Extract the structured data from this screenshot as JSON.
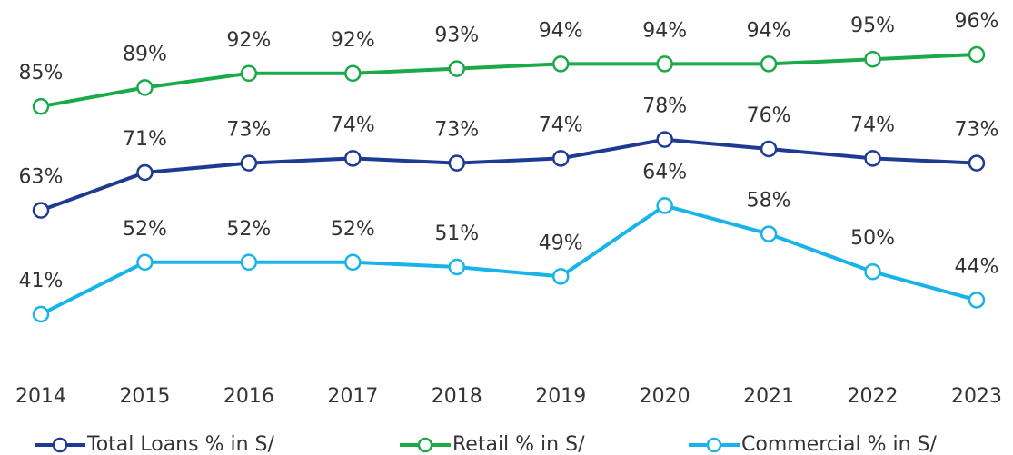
{
  "chart_data": {
    "type": "line",
    "categories": [
      "2014",
      "2015",
      "2016",
      "2017",
      "2018",
      "2019",
      "2020",
      "2021",
      "2022",
      "2023"
    ],
    "series": [
      {
        "name": "Total Loans % in S/",
        "color": "#1f3a93",
        "values": [
          63,
          71,
          73,
          74,
          73,
          74,
          78,
          76,
          74,
          73
        ],
        "value_labels": [
          "63%",
          "71%",
          "73%",
          "74%",
          "73%",
          "74%",
          "78%",
          "76%",
          "74%",
          "73%"
        ]
      },
      {
        "name": "Retail % in S/",
        "color": "#1aaa4a",
        "values": [
          85,
          89,
          92,
          92,
          93,
          94,
          94,
          94,
          95,
          96
        ],
        "value_labels": [
          "85%",
          "89%",
          "92%",
          "92%",
          "93%",
          "94%",
          "94%",
          "94%",
          "95%",
          "96%"
        ]
      },
      {
        "name": "Commercial % in S/",
        "color": "#18b4e9",
        "values": [
          41,
          52,
          52,
          52,
          51,
          49,
          64,
          58,
          50,
          44
        ],
        "value_labels": [
          "41%",
          "52%",
          "52%",
          "52%",
          "51%",
          "49%",
          "64%",
          "58%",
          "50%",
          "44%"
        ]
      }
    ],
    "legend": "bottom"
  }
}
